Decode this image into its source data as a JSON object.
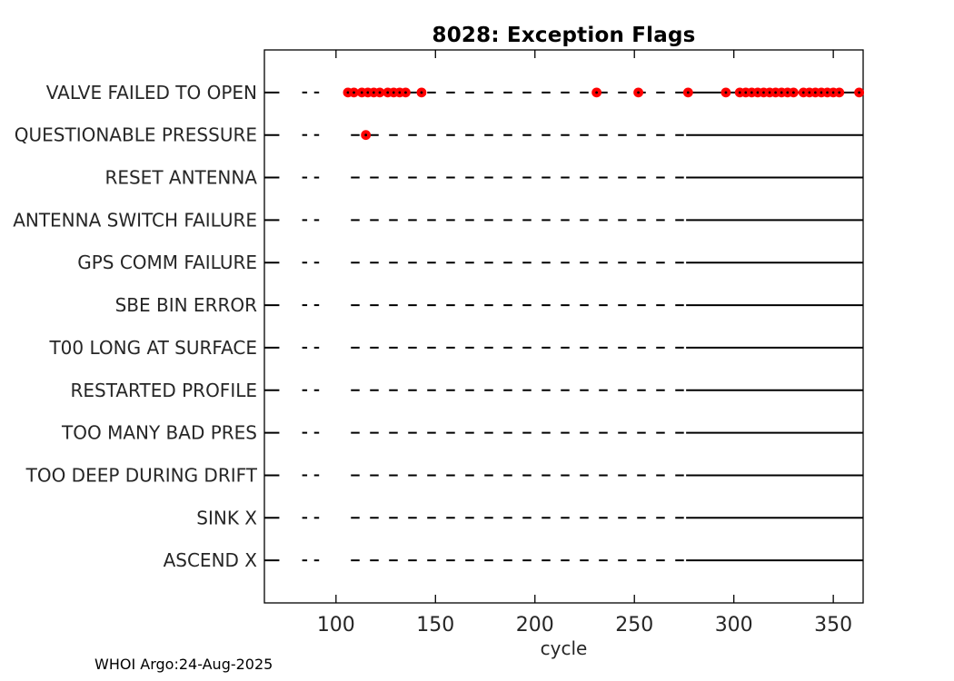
{
  "title": "8028: Exception Flags",
  "xlabel": "cycle",
  "footer": "WHOI Argo:24-Aug-2025",
  "colors": {
    "event_marker": "#ff0000",
    "marker_center": "#000000",
    "line": "#000000",
    "axis_text": "#262626",
    "title_text": "#000000",
    "background": "#ffffff"
  },
  "chart_data": {
    "type": "scatter",
    "title": "8028: Exception Flags",
    "xlabel": "cycle",
    "ylabel": "",
    "xlim": [
      64,
      365
    ],
    "xticks": [
      100,
      150,
      200,
      250,
      300,
      350
    ],
    "grid": false,
    "legend": null,
    "marker": {
      "shape": "circle",
      "color": "#ff0000",
      "radius_px": 5.4
    },
    "rows": [
      {
        "label": "VALVE FAILED TO OPEN",
        "event_cycles": [
          106,
          109,
          113,
          116,
          119,
          122,
          126,
          129,
          132,
          135,
          143,
          231,
          252,
          277,
          296,
          303,
          306,
          309,
          312,
          315,
          318,
          321,
          324,
          327,
          330,
          335,
          338,
          341,
          344,
          347,
          350,
          353,
          363
        ]
      },
      {
        "label": "QUESTIONABLE PRESSURE",
        "event_cycles": [
          115
        ]
      },
      {
        "label": "RESET ANTENNA",
        "event_cycles": []
      },
      {
        "label": "ANTENNA SWITCH FAILURE",
        "event_cycles": []
      },
      {
        "label": "GPS COMM FAILURE",
        "event_cycles": []
      },
      {
        "label": "SBE BIN ERROR",
        "event_cycles": []
      },
      {
        "label": "T00 LONG AT SURFACE",
        "event_cycles": []
      },
      {
        "label": "RESTARTED PROFILE",
        "event_cycles": []
      },
      {
        "label": "TOO MANY BAD PRES",
        "event_cycles": []
      },
      {
        "label": "TOO DEEP DURING DRIFT",
        "event_cycles": []
      },
      {
        "label": "SINK X",
        "event_cycles": []
      },
      {
        "label": "ASCEND X",
        "event_cycles": []
      }
    ],
    "baseline_segments": {
      "solid": [
        [
          64,
          71.5
        ],
        [
          276,
          365
        ]
      ],
      "short_dashes": [
        [
          83,
          85.5
        ],
        [
          89,
          91.5
        ]
      ],
      "dashed": [
        [
          107.5,
          276
        ]
      ]
    }
  }
}
